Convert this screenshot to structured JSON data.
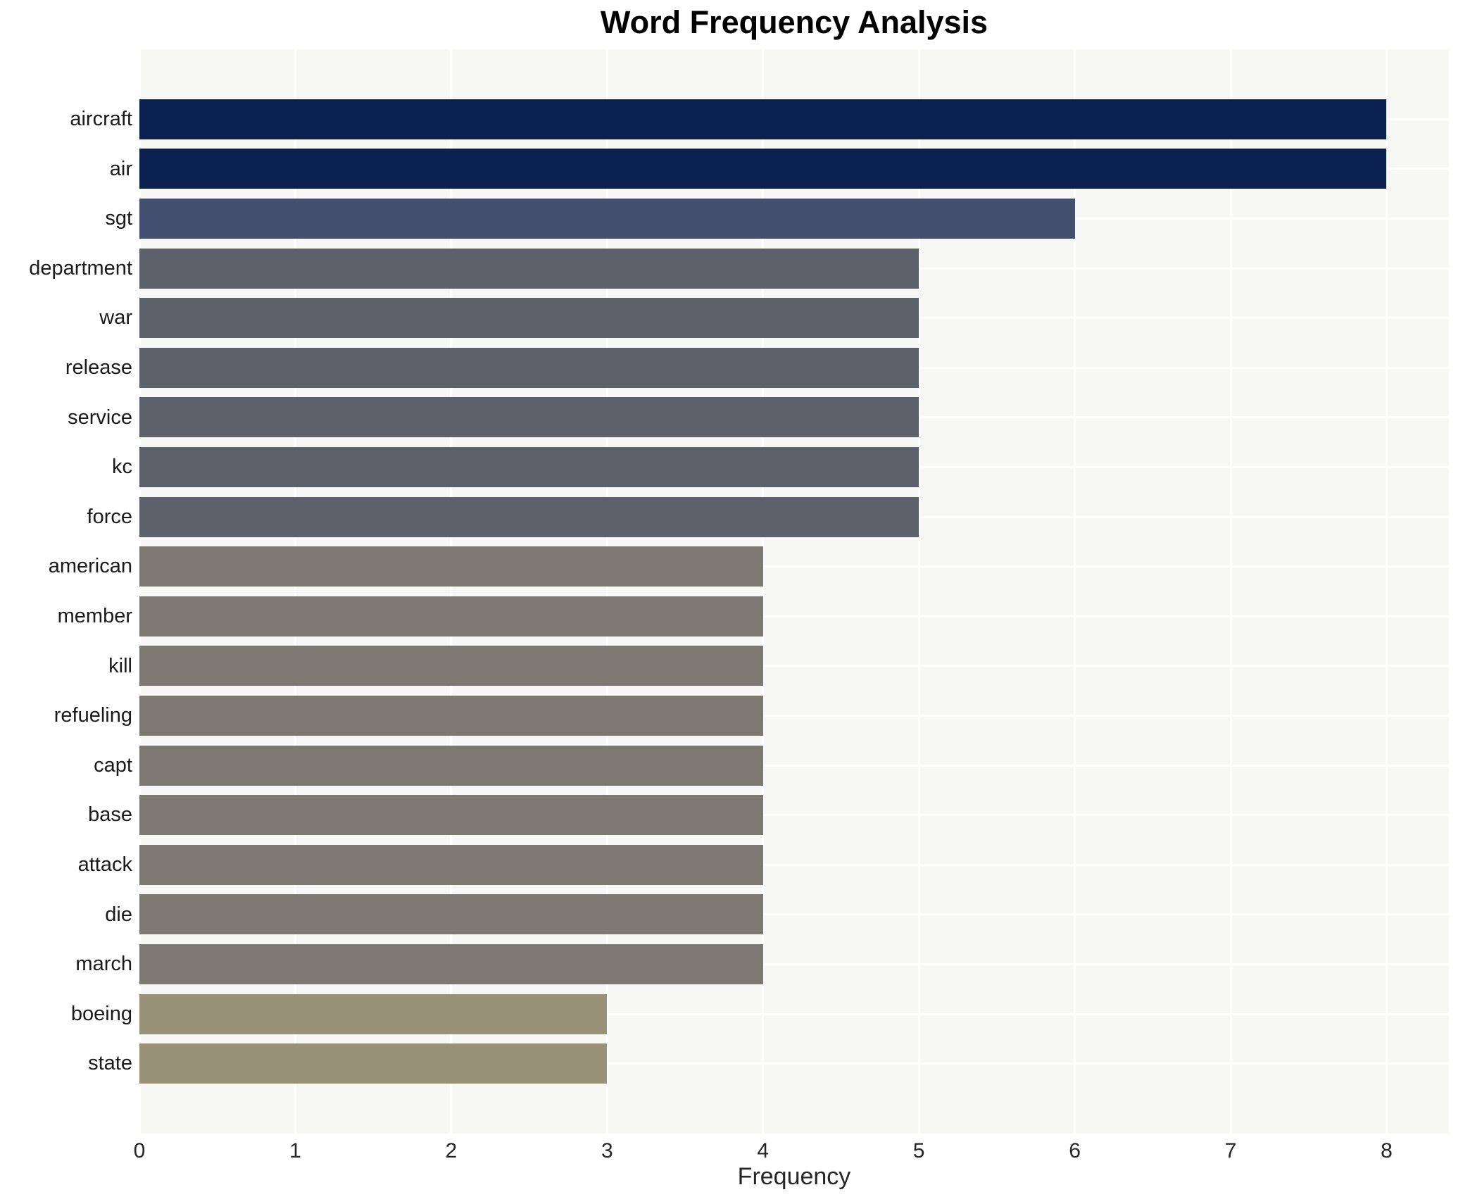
{
  "title": "Word Frequency Analysis",
  "axes": {
    "xlabel": "Frequency",
    "xtick_labels": [
      "0",
      "1",
      "2",
      "3",
      "4",
      "5",
      "6",
      "7",
      "8"
    ]
  },
  "chart_data": {
    "type": "bar",
    "orientation": "horizontal",
    "title": "Word Frequency Analysis",
    "xlabel": "Frequency",
    "ylabel": "",
    "categories": [
      "aircraft",
      "air",
      "sgt",
      "department",
      "war",
      "release",
      "service",
      "kc",
      "force",
      "american",
      "member",
      "kill",
      "refueling",
      "capt",
      "base",
      "attack",
      "die",
      "march",
      "boeing",
      "state"
    ],
    "values": [
      8,
      8,
      6,
      5,
      5,
      5,
      5,
      5,
      5,
      4,
      4,
      4,
      4,
      4,
      4,
      4,
      4,
      4,
      3,
      3
    ],
    "bar_colors": [
      "#0b2150",
      "#0b2150",
      "#44506f",
      "#5c606b",
      "#5c606b",
      "#5c606b",
      "#5c606b",
      "#5c606b",
      "#5c606b",
      "#7b7972",
      "#7b7972",
      "#7b7972",
      "#7b7972",
      "#7b7972",
      "#7b7972",
      "#7b7972",
      "#7b7972",
      "#7b7972",
      "#9a9278",
      "#9a9278"
    ],
    "xlim": [
      0,
      8.4
    ],
    "xticks": [
      0,
      1,
      2,
      3,
      4,
      5,
      6,
      7,
      8
    ],
    "grid": true,
    "legend": false,
    "plot_background": "#f7f7f5",
    "grid_color": "#ffffff"
  }
}
